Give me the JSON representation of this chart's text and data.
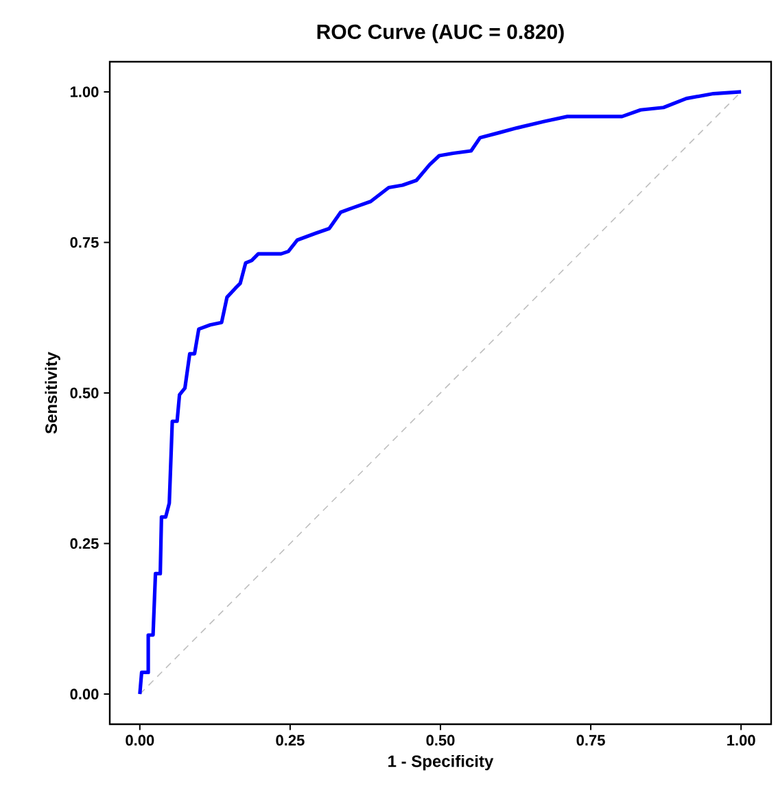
{
  "chart_data": {
    "type": "line",
    "title": "ROC Curve (AUC = 0.820)",
    "xlabel": "1 - Specificity",
    "ylabel": "Sensitivity",
    "xlim": [
      -0.05,
      1.05
    ],
    "ylim": [
      -0.05,
      1.05
    ],
    "xticks": [
      {
        "value": 0,
        "label": "0.00"
      },
      {
        "value": 0.25,
        "label": "0.25"
      },
      {
        "value": 0.5,
        "label": "0.50"
      },
      {
        "value": 0.75,
        "label": "0.75"
      },
      {
        "value": 1,
        "label": "1.00"
      }
    ],
    "yticks": [
      {
        "value": 0,
        "label": "0.00"
      },
      {
        "value": 0.25,
        "label": "0.25"
      },
      {
        "value": 0.5,
        "label": "0.50"
      },
      {
        "value": 0.75,
        "label": "0.75"
      },
      {
        "value": 1,
        "label": "1.00"
      }
    ],
    "grid": false,
    "marker": "none",
    "series": [
      {
        "color": "#bebebe",
        "line_style": "dashed",
        "x": [
          0,
          1
        ],
        "values": [
          0,
          1
        ]
      },
      {
        "color": "#0000ff",
        "line_style": "solid",
        "x": [
          0,
          0.003,
          0.014,
          0.014,
          0.022,
          0.026,
          0.034,
          0.036,
          0.043,
          0.049,
          0.054,
          0.062,
          0.066,
          0.075,
          0.083,
          0.091,
          0.098,
          0.117,
          0.136,
          0.145,
          0.159,
          0.167,
          0.176,
          0.186,
          0.197,
          0.235,
          0.247,
          0.262,
          0.292,
          0.315,
          0.334,
          0.353,
          0.384,
          0.414,
          0.437,
          0.46,
          0.482,
          0.498,
          0.521,
          0.551,
          0.566,
          0.597,
          0.627,
          0.673,
          0.711,
          0.802,
          0.833,
          0.871,
          0.909,
          0.954,
          1.0
        ],
        "values": [
          0,
          0.036,
          0.036,
          0.098,
          0.098,
          0.2,
          0.2,
          0.294,
          0.294,
          0.317,
          0.453,
          0.453,
          0.497,
          0.508,
          0.565,
          0.565,
          0.606,
          0.613,
          0.617,
          0.659,
          0.674,
          0.682,
          0.716,
          0.72,
          0.731,
          0.731,
          0.735,
          0.754,
          0.765,
          0.773,
          0.8,
          0.807,
          0.818,
          0.841,
          0.845,
          0.853,
          0.879,
          0.894,
          0.898,
          0.902,
          0.924,
          0.932,
          0.94,
          0.951,
          0.959,
          0.959,
          0.97,
          0.974,
          0.989,
          0.997,
          1.0
        ]
      }
    ]
  }
}
